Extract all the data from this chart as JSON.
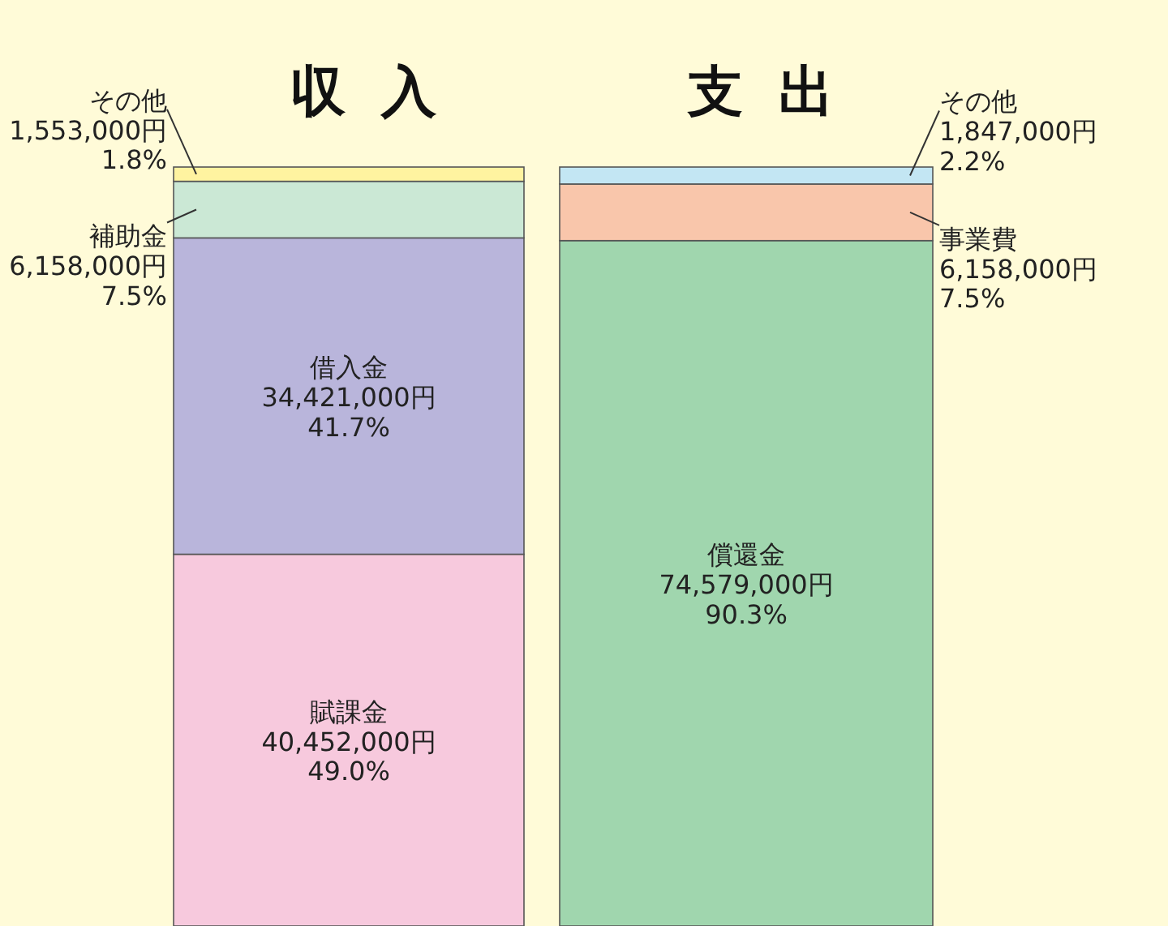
{
  "chart_data": {
    "type": "bar",
    "stacked": true,
    "categories": [
      "収入",
      "支出"
    ],
    "series": [
      {
        "name": "賦課金",
        "color": "#f7c9dd",
        "values": [
          40452000,
          null
        ],
        "value_labels": [
          "40,452,000円\n49.0%",
          null
        ]
      },
      {
        "name": "借入金",
        "color": "#b9b5db",
        "values": [
          34421000,
          null
        ],
        "value_labels": [
          "34,421,000円\n41.7%",
          null
        ]
      },
      {
        "name": "補助金",
        "color": "#cbe8d5",
        "values": [
          6158000,
          null
        ],
        "value_labels": [
          "6,158,000円\n7.5%",
          null
        ]
      },
      {
        "name": "その他",
        "color": "#fff3a0",
        "values": [
          1553000,
          null
        ],
        "value_labels": [
          "1,553,000円\n1.8%",
          null
        ]
      },
      {
        "name": "償還金",
        "color": "#a0d6ae",
        "values": [
          null,
          74579000
        ],
        "value_labels": [
          null,
          "74,579,000円\n90.3%"
        ]
      },
      {
        "name": "事業費",
        "color": "#f9c6ab",
        "values": [
          null,
          6158000
        ],
        "value_labels": [
          null,
          "6,158,000円\n7.5%"
        ]
      },
      {
        "name": "その他",
        "color": "#c3e6f3",
        "values": [
          null,
          1847000
        ],
        "value_labels": [
          null,
          "1,847,000円\n2.2%"
        ]
      }
    ]
  }
}
